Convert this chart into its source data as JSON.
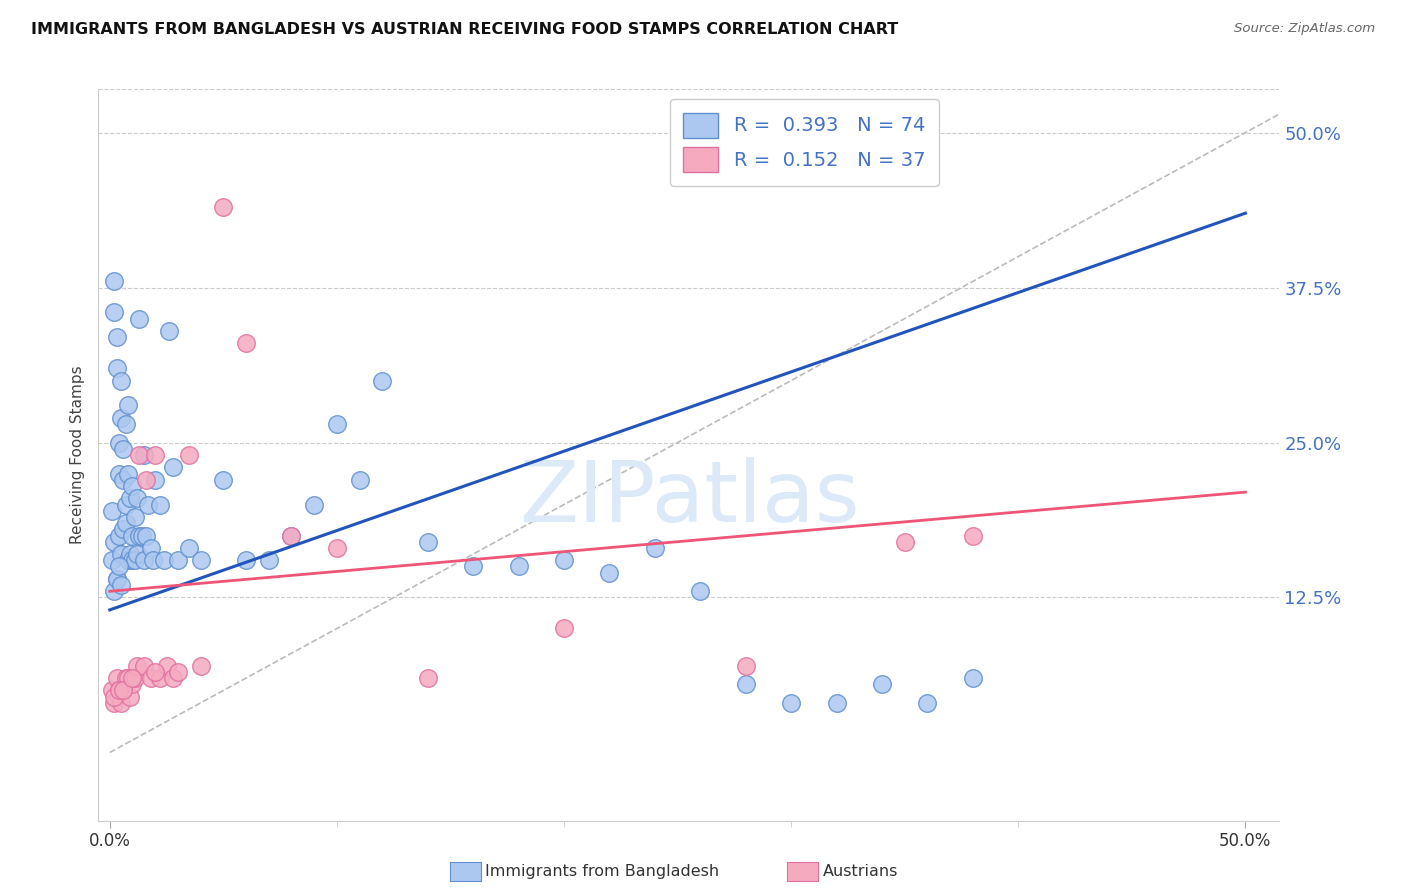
{
  "title": "IMMIGRANTS FROM BANGLADESH VS AUSTRIAN RECEIVING FOOD STAMPS CORRELATION CHART",
  "source": "Source: ZipAtlas.com",
  "ylabel": "Receiving Food Stamps",
  "xlim": [
    -0.005,
    0.515
  ],
  "ylim": [
    -0.055,
    0.535
  ],
  "x_ticks": [
    0.0,
    0.5
  ],
  "x_tick_labels": [
    "0.0%",
    "50.0%"
  ],
  "y_ticks_right": [
    0.125,
    0.25,
    0.375,
    0.5
  ],
  "y_tick_labels_right": [
    "12.5%",
    "25.0%",
    "37.5%",
    "50.0%"
  ],
  "grid_color": "#cccccc",
  "background_color": "#ffffff",
  "blue_fill": "#adc8f0",
  "blue_edge": "#6090d0",
  "pink_fill": "#f5aac0",
  "pink_edge": "#e070a0",
  "blue_line_color": "#2255bb",
  "pink_line_color": "#ee5577",
  "ref_line_color": "#bbbbbb",
  "watermark_color": "#dce9f8",
  "legend_text_color": "#4472c4",
  "legend_R1": "R =  0.393",
  "legend_N1": "N = 74",
  "legend_R2": "R =  0.152",
  "legend_N2": "N = 37",
  "blue_line": [
    [
      0.0,
      0.115
    ],
    [
      0.5,
      0.435
    ]
  ],
  "pink_line": [
    [
      0.0,
      0.13
    ],
    [
      0.5,
      0.21
    ]
  ],
  "ref_line": [
    [
      0.0,
      0.0
    ],
    [
      0.515,
      0.515
    ]
  ],
  "blue_x": [
    0.001,
    0.001,
    0.002,
    0.002,
    0.002,
    0.003,
    0.003,
    0.003,
    0.004,
    0.004,
    0.004,
    0.005,
    0.005,
    0.005,
    0.006,
    0.006,
    0.006,
    0.007,
    0.007,
    0.007,
    0.008,
    0.008,
    0.008,
    0.009,
    0.009,
    0.01,
    0.01,
    0.01,
    0.011,
    0.011,
    0.012,
    0.012,
    0.013,
    0.013,
    0.014,
    0.015,
    0.015,
    0.016,
    0.017,
    0.018,
    0.019,
    0.02,
    0.022,
    0.024,
    0.026,
    0.028,
    0.03,
    0.035,
    0.04,
    0.05,
    0.06,
    0.07,
    0.08,
    0.09,
    0.1,
    0.11,
    0.12,
    0.14,
    0.16,
    0.18,
    0.2,
    0.22,
    0.24,
    0.26,
    0.28,
    0.3,
    0.32,
    0.34,
    0.36,
    0.38,
    0.002,
    0.003,
    0.004,
    0.005
  ],
  "blue_y": [
    0.155,
    0.195,
    0.17,
    0.355,
    0.38,
    0.335,
    0.31,
    0.14,
    0.225,
    0.25,
    0.175,
    0.16,
    0.27,
    0.3,
    0.18,
    0.22,
    0.245,
    0.2,
    0.265,
    0.185,
    0.155,
    0.225,
    0.28,
    0.16,
    0.205,
    0.155,
    0.215,
    0.175,
    0.155,
    0.19,
    0.16,
    0.205,
    0.175,
    0.35,
    0.175,
    0.155,
    0.24,
    0.175,
    0.2,
    0.165,
    0.155,
    0.22,
    0.2,
    0.155,
    0.34,
    0.23,
    0.155,
    0.165,
    0.155,
    0.22,
    0.155,
    0.155,
    0.175,
    0.2,
    0.265,
    0.22,
    0.3,
    0.17,
    0.15,
    0.15,
    0.155,
    0.145,
    0.165,
    0.13,
    0.055,
    0.04,
    0.04,
    0.055,
    0.04,
    0.06,
    0.13,
    0.14,
    0.15,
    0.135
  ],
  "pink_x": [
    0.001,
    0.002,
    0.003,
    0.004,
    0.005,
    0.006,
    0.007,
    0.008,
    0.009,
    0.01,
    0.011,
    0.012,
    0.013,
    0.015,
    0.016,
    0.018,
    0.02,
    0.022,
    0.025,
    0.028,
    0.03,
    0.035,
    0.04,
    0.05,
    0.06,
    0.08,
    0.1,
    0.14,
    0.2,
    0.28,
    0.35,
    0.38,
    0.002,
    0.004,
    0.006,
    0.01,
    0.02
  ],
  "pink_y": [
    0.05,
    0.04,
    0.06,
    0.05,
    0.04,
    0.05,
    0.06,
    0.06,
    0.045,
    0.055,
    0.06,
    0.07,
    0.24,
    0.07,
    0.22,
    0.06,
    0.24,
    0.06,
    0.07,
    0.06,
    0.065,
    0.24,
    0.07,
    0.44,
    0.33,
    0.175,
    0.165,
    0.06,
    0.1,
    0.07,
    0.17,
    0.175,
    0.045,
    0.05,
    0.05,
    0.06,
    0.065
  ],
  "figsize": [
    14.06,
    8.92
  ],
  "dpi": 100,
  "legend_label1": "Immigrants from Bangladesh",
  "legend_label2": "Austrians"
}
